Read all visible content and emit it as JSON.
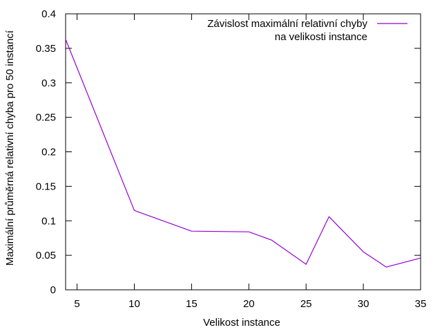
{
  "chart_data": {
    "type": "line",
    "title": "",
    "xlabel": "Velikost instance",
    "ylabel": "Maximální průměrná relativní chyba pro 50 instancí",
    "xlim": [
      4,
      35
    ],
    "ylim": [
      0,
      0.4
    ],
    "xticks": [
      5,
      10,
      15,
      20,
      25,
      30,
      35
    ],
    "yticks": [
      0,
      0.05,
      0.1,
      0.15,
      0.2,
      0.25,
      0.3,
      0.35,
      0.4
    ],
    "xtick_labels": [
      "5",
      "10",
      "15",
      "20",
      "25",
      "30",
      "35"
    ],
    "ytick_labels": [
      "0",
      "0.05",
      "0.1",
      "0.15",
      "0.2",
      "0.25",
      "0.3",
      "0.35",
      "0.4"
    ],
    "grid": false,
    "legend_position": "top-right",
    "series": [
      {
        "name_lines": [
          "Závislost maximální relativní chyby",
          "na velikosti instance"
        ],
        "color": "#9400d3",
        "x": [
          4,
          10,
          15,
          20,
          22,
          25,
          27,
          30,
          32,
          35
        ],
        "y": [
          0.363,
          0.115,
          0.085,
          0.084,
          0.072,
          0.037,
          0.106,
          0.055,
          0.033,
          0.046
        ]
      }
    ]
  }
}
